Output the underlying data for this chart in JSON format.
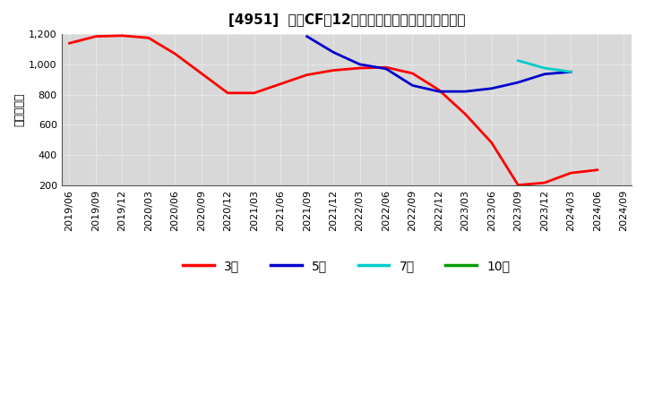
{
  "title": "[4951]  投資CFの12か月移動合計の標準偏差の推移",
  "ylabel": "（百万円）",
  "background_color": "#ffffff",
  "plot_bg_color": "#d8d8d8",
  "grid_color": "#ffffff",
  "ylim": [
    200,
    1200
  ],
  "yticks": [
    200,
    400,
    600,
    800,
    1000,
    1200
  ],
  "ytick_labels": [
    "200",
    "400",
    "600",
    "800",
    "1,000",
    "1,200"
  ],
  "legend": [
    {
      "label": "3年",
      "color": "#ff0000"
    },
    {
      "label": "5年",
      "color": "#0000cc"
    },
    {
      "label": "7年",
      "color": "#00cccc"
    },
    {
      "label": "10年",
      "color": "#009900"
    }
  ],
  "series_3yr": {
    "color": "#ff0000",
    "x": [
      "2019/06",
      "2019/09",
      "2019/12",
      "2020/03",
      "2020/06",
      "2020/09",
      "2020/12",
      "2021/03",
      "2021/06",
      "2021/09",
      "2021/12",
      "2022/03",
      "2022/06",
      "2022/09",
      "2022/12",
      "2023/03",
      "2023/06",
      "2023/09",
      "2023/12",
      "2024/03",
      "2024/06"
    ],
    "y": [
      1140,
      1185,
      1190,
      1175,
      1070,
      940,
      810,
      810,
      870,
      930,
      960,
      975,
      980,
      940,
      830,
      670,
      480,
      200,
      215,
      280,
      300
    ]
  },
  "series_5yr": {
    "color": "#0000cc",
    "x": [
      "2021/09",
      "2021/12",
      "2022/03",
      "2022/06",
      "2022/09",
      "2022/12",
      "2023/03",
      "2023/06",
      "2023/09",
      "2023/12",
      "2024/03"
    ],
    "y": [
      1185,
      1080,
      1000,
      970,
      860,
      820,
      820,
      840,
      880,
      935,
      950
    ]
  },
  "series_7yr": {
    "color": "#00cccc",
    "x": [
      "2023/09",
      "2023/12",
      "2024/03"
    ],
    "y": [
      1025,
      975,
      950
    ]
  },
  "series_10yr": {
    "color": "#009900",
    "x": [],
    "y": []
  },
  "xtick_labels": [
    "2019/06",
    "2019/09",
    "2019/12",
    "2020/03",
    "2020/06",
    "2020/09",
    "2020/12",
    "2021/03",
    "2021/06",
    "2021/09",
    "2021/12",
    "2022/03",
    "2022/06",
    "2022/09",
    "2022/12",
    "2023/03",
    "2023/06",
    "2023/09",
    "2023/12",
    "2024/03",
    "2024/06",
    "2024/09"
  ]
}
